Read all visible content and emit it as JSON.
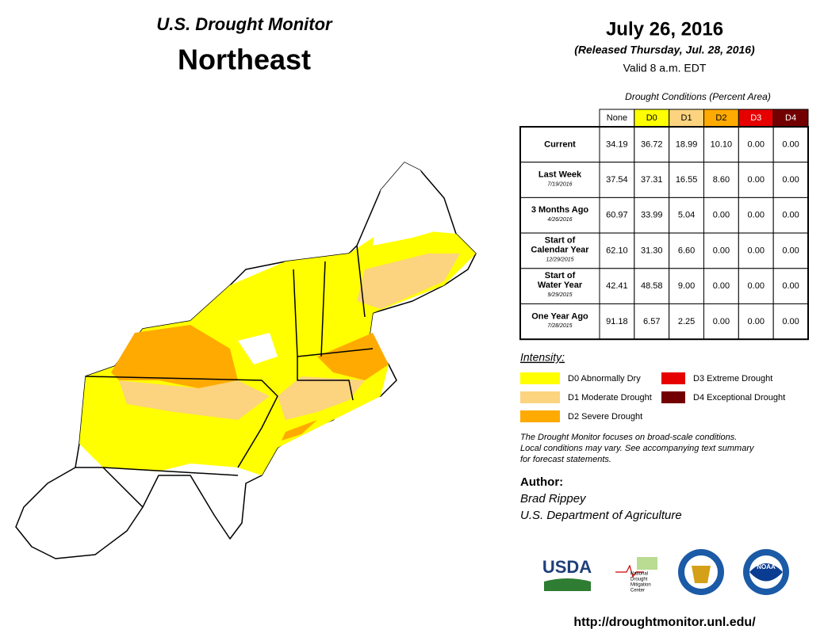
{
  "header": {
    "title": "U.S. Drought Monitor",
    "region": "Northeast",
    "date": "July 26, 2016",
    "released": "(Released Thursday, Jul. 28, 2016)",
    "valid": "Valid 8 a.m. EDT"
  },
  "table": {
    "caption": "Drought Conditions (Percent Area)",
    "columns": [
      {
        "label": "None",
        "color": "#ffffff",
        "text_color": "#000000"
      },
      {
        "label": "D0",
        "color": "#ffff00",
        "text_color": "#000000"
      },
      {
        "label": "D1",
        "color": "#fcd37f",
        "text_color": "#000000"
      },
      {
        "label": "D2",
        "color": "#ffaa00",
        "text_color": "#000000"
      },
      {
        "label": "D3",
        "color": "#e60000",
        "text_color": "#ffffff"
      },
      {
        "label": "D4",
        "color": "#730000",
        "text_color": "#ffffff"
      }
    ],
    "rows": [
      {
        "label": [
          "Current"
        ],
        "values": [
          "34.19",
          "36.72",
          "18.99",
          "10.10",
          "0.00",
          "0.00"
        ]
      },
      {
        "label": [
          "Last Week"
        ],
        "date": "7/19/2016",
        "values": [
          "37.54",
          "37.31",
          "16.55",
          "8.60",
          "0.00",
          "0.00"
        ]
      },
      {
        "label": [
          "3 Months Ago"
        ],
        "date": "4/26/2016",
        "values": [
          "60.97",
          "33.99",
          "5.04",
          "0.00",
          "0.00",
          "0.00"
        ]
      },
      {
        "label": [
          "Start of",
          "Calendar Year"
        ],
        "date": "12/29/2015",
        "values": [
          "62.10",
          "31.30",
          "6.60",
          "0.00",
          "0.00",
          "0.00"
        ]
      },
      {
        "label": [
          "Start of",
          "Water Year"
        ],
        "date": "9/29/2015",
        "values": [
          "42.41",
          "48.58",
          "9.00",
          "0.00",
          "0.00",
          "0.00"
        ]
      },
      {
        "label": [
          "One Year Ago"
        ],
        "date": "7/28/2015",
        "values": [
          "91.18",
          "6.57",
          "2.25",
          "0.00",
          "0.00",
          "0.00"
        ]
      }
    ]
  },
  "legend": {
    "title": "Intensity:",
    "items": [
      {
        "label": "D0 Abnormally Dry",
        "color": "#ffff00"
      },
      {
        "label": "D1 Moderate Drought",
        "color": "#fcd37f"
      },
      {
        "label": "D2 Severe Drought",
        "color": "#ffaa00"
      },
      {
        "label": "D3 Extreme Drought",
        "color": "#e60000"
      },
      {
        "label": "D4 Exceptional Drought",
        "color": "#730000"
      }
    ]
  },
  "note": [
    "The Drought Monitor focuses on broad-scale conditions.",
    "Local conditions may vary. See accompanying text summary",
    "for forecast statements."
  ],
  "author": {
    "heading": "Author:",
    "name": "Brad Rippey",
    "agency": "U.S. Department of Agriculture"
  },
  "logos": {
    "usda": "USDA",
    "ndmc": [
      "National",
      "Drought",
      "Mitigation",
      "Center"
    ],
    "noaa": "NOAA"
  },
  "url": "http://droughtmonitor.unl.edu/"
}
